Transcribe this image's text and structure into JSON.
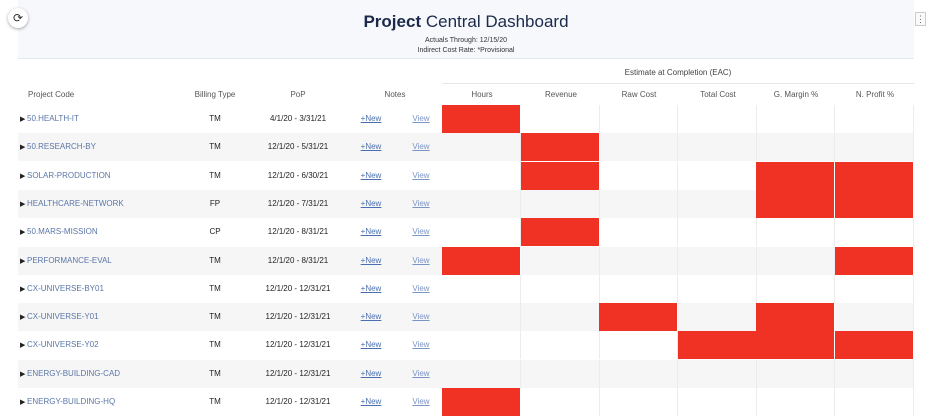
{
  "header": {
    "title_bold": "Project",
    "title_rest": " Central Dashboard",
    "actuals": "Actuals Through: 12/15/20",
    "rate": "Indirect Cost Rate: *Provisional"
  },
  "toolbar": {
    "refresh_icon": "⟳",
    "menu_icon": "⋮"
  },
  "eac_title": "Estimate at Completion (EAC)",
  "columns": {
    "project_code": "Project Code",
    "billing_type": "Billing Type",
    "pop": "PoP",
    "notes": "Notes",
    "hours": "Hours",
    "revenue": "Revenue",
    "raw_cost": "Raw Cost",
    "total_cost": "Total Cost",
    "g_margin": "G. Margin %",
    "n_profit": "N. Profit %"
  },
  "colors": {
    "flag": "#f03224",
    "link": "#5b76a8",
    "header_bg": "#f6f8fc"
  },
  "rows": [
    {
      "code": "50.HEALTH-IT",
      "billing": "TM",
      "pop": "4/1/20 - 3/31/21",
      "new_label": "+New",
      "view_label": "View",
      "flags": [
        1,
        0,
        0,
        0,
        0,
        0
      ]
    },
    {
      "code": "50.RESEARCH-BY",
      "billing": "TM",
      "pop": "12/1/20 - 5/31/21",
      "new_label": "+New",
      "view_label": "View",
      "flags": [
        0,
        1,
        0,
        0,
        0,
        0
      ]
    },
    {
      "code": "SOLAR-PRODUCTION",
      "billing": "TM",
      "pop": "12/1/20 - 6/30/21",
      "new_label": "+New",
      "view_label": "View",
      "flags": [
        0,
        1,
        0,
        0,
        1,
        1
      ]
    },
    {
      "code": "HEALTHCARE-NETWORK",
      "billing": "FP",
      "pop": "12/1/20 - 7/31/21",
      "new_label": "+New",
      "view_label": "View",
      "flags": [
        0,
        0,
        0,
        0,
        1,
        1
      ]
    },
    {
      "code": "50.MARS-MISSION",
      "billing": "CP",
      "pop": "12/1/20 - 8/31/21",
      "new_label": "+New",
      "view_label": "View",
      "flags": [
        0,
        1,
        0,
        0,
        0,
        0
      ]
    },
    {
      "code": "PERFORMANCE-EVAL",
      "billing": "TM",
      "pop": "12/1/20 - 8/31/21",
      "new_label": "+New",
      "view_label": "View",
      "flags": [
        1,
        0,
        0,
        0,
        0,
        1
      ]
    },
    {
      "code": "CX-UNIVERSE-BY01",
      "billing": "TM",
      "pop": "12/1/20 - 12/31/21",
      "new_label": "+New",
      "view_label": "View",
      "flags": [
        0,
        0,
        0,
        0,
        0,
        0
      ]
    },
    {
      "code": "CX-UNIVERSE-Y01",
      "billing": "TM",
      "pop": "12/1/20 - 12/31/21",
      "new_label": "+New",
      "view_label": "View",
      "flags": [
        0,
        0,
        1,
        0,
        1,
        0
      ]
    },
    {
      "code": "CX-UNIVERSE-Y02",
      "billing": "TM",
      "pop": "12/1/20 - 12/31/21",
      "new_label": "+New",
      "view_label": "View",
      "flags": [
        0,
        0,
        0,
        1,
        1,
        1
      ]
    },
    {
      "code": "ENERGY-BUILDING-CAD",
      "billing": "TM",
      "pop": "12/1/20 - 12/31/21",
      "new_label": "+New",
      "view_label": "View",
      "flags": [
        0,
        0,
        0,
        0,
        0,
        0
      ]
    },
    {
      "code": "ENERGY-BUILDING-HQ",
      "billing": "TM",
      "pop": "12/1/20 - 12/31/21",
      "new_label": "+New",
      "view_label": "View",
      "flags": [
        1,
        0,
        0,
        0,
        0,
        0
      ]
    }
  ]
}
